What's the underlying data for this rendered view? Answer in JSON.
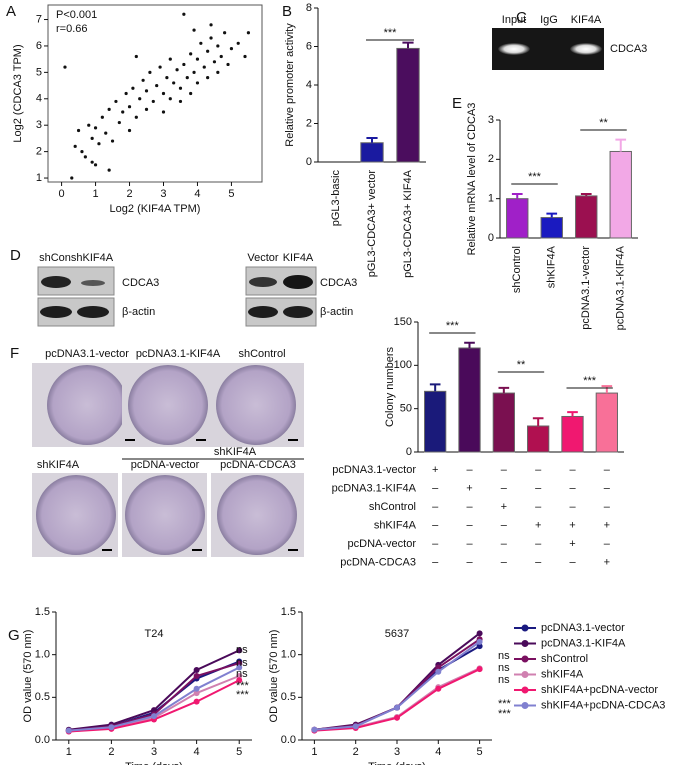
{
  "figure": {
    "panel_labels": [
      "A",
      "B",
      "C",
      "D",
      "E",
      "F",
      "G"
    ],
    "gel_c": {
      "lanes": [
        "Input",
        "IgG",
        "KIF4A"
      ],
      "band": "CDCA3"
    },
    "blot_d_left": {
      "lanes": [
        "shCon",
        "shKIF4A"
      ],
      "bands": [
        "CDCA3",
        "β-actin"
      ]
    },
    "blot_d_right": {
      "lanes": [
        "Vector",
        "KIF4A"
      ],
      "bands": [
        "CDCA3",
        "β-actin"
      ]
    },
    "plates_f": {
      "labels": [
        "pcDNA3.1-vector",
        "pcDNA3.1-KIF4A",
        "shControl",
        "shKIF4A",
        "pcDNA-vector",
        "pcDNA-CDCA3"
      ],
      "group_label": "shKIF4A"
    }
  },
  "chart_data": [
    {
      "type": "scatter",
      "xlabel": "Log2 (KIF4A TPM)",
      "ylabel": "Log2 (CDCA3 TPM)",
      "annotations": [
        "P<0.001",
        "r=0.66"
      ],
      "color": "#111111",
      "x": [
        0.3,
        0.4,
        0.5,
        0.6,
        0.7,
        0.8,
        0.9,
        1.0,
        1.0,
        1.1,
        1.2,
        1.3,
        1.4,
        1.5,
        1.6,
        1.7,
        1.8,
        1.9,
        2.0,
        2.0,
        2.1,
        2.2,
        2.3,
        2.4,
        2.5,
        2.5,
        2.6,
        2.7,
        2.8,
        2.9,
        3.0,
        3.0,
        3.1,
        3.2,
        3.2,
        3.3,
        3.4,
        3.5,
        3.5,
        3.6,
        3.7,
        3.8,
        3.8,
        3.9,
        4.0,
        4.0,
        4.1,
        4.2,
        4.3,
        4.3,
        4.4,
        4.5,
        4.6,
        4.6,
        4.7,
        4.8,
        4.9,
        5.0,
        5.2,
        5.4,
        3.6,
        4.4,
        0.1,
        5.5,
        2.2,
        1.4,
        0.9,
        3.9
      ],
      "values": [
        1.0,
        2.2,
        2.8,
        2.0,
        1.8,
        3.0,
        2.5,
        1.5,
        2.9,
        2.3,
        3.3,
        2.7,
        3.6,
        2.4,
        3.9,
        3.1,
        3.5,
        4.2,
        2.8,
        3.7,
        4.4,
        3.3,
        4.0,
        4.7,
        3.6,
        4.3,
        5.0,
        3.9,
        4.5,
        5.2,
        3.5,
        4.2,
        4.8,
        5.5,
        4.0,
        4.6,
        5.1,
        3.9,
        4.4,
        5.3,
        4.8,
        5.7,
        4.2,
        5.0,
        5.5,
        4.6,
        6.1,
        5.2,
        4.8,
        5.8,
        6.3,
        5.4,
        5.0,
        6.0,
        5.6,
        6.5,
        5.3,
        5.9,
        6.1,
        5.6,
        7.2,
        6.8,
        5.2,
        6.5,
        5.6,
        1.3,
        1.6,
        6.6
      ],
      "xlim": [
        -0.4,
        5.9
      ],
      "ylim": [
        0.85,
        7.55
      ],
      "xticks": [
        0,
        1,
        2,
        3,
        4,
        5
      ],
      "yticks": [
        1,
        2,
        3,
        4,
        5,
        6,
        7
      ]
    },
    {
      "type": "bar",
      "ylabel": "Relative promoter activity",
      "categories": [
        "pGL3-basic",
        "pGL3-CDCA3+ vector",
        "pGL3-CDCA3+ KIF4A"
      ],
      "values": [
        0,
        1.0,
        5.9
      ],
      "errors": [
        0,
        0.25,
        0.3
      ],
      "colors": [
        "#1a1aa0",
        "#1a1aa0",
        "#4b0d5e"
      ],
      "ylim": [
        0,
        8
      ],
      "yticks": [
        0,
        2,
        4,
        6,
        8
      ],
      "annotations": [
        "***"
      ]
    },
    {
      "type": "bar",
      "ylabel": "Relative mRNA level of CDCA3",
      "categories": [
        "shControl",
        "shKIF4A",
        "pcDNA3.1-vector",
        "pcDNA3.1-KIF4A"
      ],
      "values": [
        1.0,
        0.52,
        1.07,
        2.2
      ],
      "errors": [
        0.12,
        0.1,
        0.05,
        0.3
      ],
      "colors": [
        "#a020c8",
        "#1a1ac0",
        "#9b1050",
        "#f2a8e6"
      ],
      "ylim": [
        0,
        3
      ],
      "yticks": [
        0,
        1,
        2,
        3
      ],
      "annotations": [
        "***",
        "**"
      ]
    },
    {
      "type": "bar",
      "ylabel": "Colony numbers",
      "values": [
        70,
        120,
        68,
        30,
        41,
        68
      ],
      "errors": [
        8,
        6,
        6,
        9,
        5,
        8
      ],
      "colors": [
        "#1a1a7a",
        "#4a0a5a",
        "#7a1050",
        "#b01050",
        "#f01870",
        "#f87098"
      ],
      "ylim": [
        0,
        150
      ],
      "yticks": [
        0,
        50,
        100,
        150
      ],
      "annotations": [
        "***",
        "**",
        "***"
      ],
      "conditions": {
        "rows": [
          "pcDNA3.1-vector",
          "pcDNA3.1-KIF4A",
          "shControl",
          "shKIF4A",
          "pcDNA-vector",
          "pcDNA-CDCA3"
        ],
        "cells": [
          [
            "+",
            "–",
            "–",
            "–",
            "–",
            "–"
          ],
          [
            "–",
            "+",
            "–",
            "–",
            "–",
            "–"
          ],
          [
            "–",
            "–",
            "+",
            "–",
            "–",
            "–"
          ],
          [
            "–",
            "–",
            "–",
            "+",
            "+",
            "+"
          ],
          [
            "–",
            "–",
            "–",
            "–",
            "+",
            "–"
          ],
          [
            "–",
            "–",
            "–",
            "–",
            "–",
            "+"
          ]
        ]
      }
    },
    {
      "type": "line",
      "title": "T24",
      "xlabel": "Time (days)",
      "ylabel": "OD value (570 nm)",
      "x": [
        1,
        2,
        3,
        4,
        5
      ],
      "xlim": [
        0.7,
        5.3
      ],
      "ylim": [
        0,
        1.5
      ],
      "xticks": [
        1,
        2,
        3,
        4,
        5
      ],
      "yticks": [
        {
          "value": 0,
          "label": "0.0"
        },
        0.5,
        {
          "value": 1,
          "label": "1.0"
        },
        1.5
      ],
      "annotations": [
        "ns",
        "ns",
        "ns",
        "***",
        "***"
      ],
      "series": [
        {
          "name": "pcDNA3.1-vector",
          "color": "#1a1a80",
          "values": [
            0.11,
            0.16,
            0.32,
            0.72,
            0.92
          ]
        },
        {
          "name": "pcDNA3.1-KIF4A",
          "color": "#4a0a5a",
          "values": [
            0.12,
            0.18,
            0.35,
            0.82,
            1.05
          ]
        },
        {
          "name": "shControl",
          "color": "#7a1060",
          "values": [
            0.11,
            0.16,
            0.3,
            0.75,
            0.9
          ]
        },
        {
          "name": "shKIF4A",
          "color": "#d080b0",
          "values": [
            0.1,
            0.14,
            0.26,
            0.55,
            0.75
          ]
        },
        {
          "name": "shKIF4A+pcDNA-vector",
          "color": "#f01870",
          "values": [
            0.1,
            0.13,
            0.24,
            0.45,
            0.7
          ]
        },
        {
          "name": "shKIF4A+pcDNA-CDCA3",
          "color": "#8080d0",
          "values": [
            0.11,
            0.15,
            0.28,
            0.6,
            0.85
          ]
        }
      ]
    },
    {
      "type": "line",
      "title": "5637",
      "xlabel": "Time (days)",
      "ylabel": "OD value (570 nm)",
      "x": [
        1,
        2,
        3,
        4,
        5
      ],
      "xlim": [
        0.7,
        5.3
      ],
      "ylim": [
        0,
        1.5
      ],
      "xticks": [
        1,
        2,
        3,
        4,
        5
      ],
      "yticks": [
        {
          "value": 0,
          "label": "0.0"
        },
        0.5,
        {
          "value": 1,
          "label": "1.0"
        },
        1.5
      ],
      "annotations": [
        "ns",
        "ns",
        "ns",
        "***",
        "***"
      ],
      "legend": "right",
      "series": [
        {
          "name": "pcDNA3.1-vector",
          "color": "#1a1a80",
          "values": [
            0.12,
            0.17,
            0.38,
            0.82,
            1.1
          ]
        },
        {
          "name": "pcDNA3.1-KIF4A",
          "color": "#4a0a5a",
          "values": [
            0.12,
            0.18,
            0.38,
            0.88,
            1.25
          ]
        },
        {
          "name": "shControl",
          "color": "#7a1060",
          "values": [
            0.12,
            0.17,
            0.38,
            0.85,
            1.18
          ]
        },
        {
          "name": "shKIF4A",
          "color": "#d080b0",
          "values": [
            0.12,
            0.15,
            0.27,
            0.62,
            0.84
          ]
        },
        {
          "name": "shKIF4A+pcDNA-vector",
          "color": "#f01870",
          "values": [
            0.11,
            0.14,
            0.26,
            0.6,
            0.83
          ]
        },
        {
          "name": "shKIF4A+pcDNA-CDCA3",
          "color": "#8080d0",
          "values": [
            0.12,
            0.16,
            0.38,
            0.8,
            1.15
          ]
        }
      ]
    }
  ]
}
